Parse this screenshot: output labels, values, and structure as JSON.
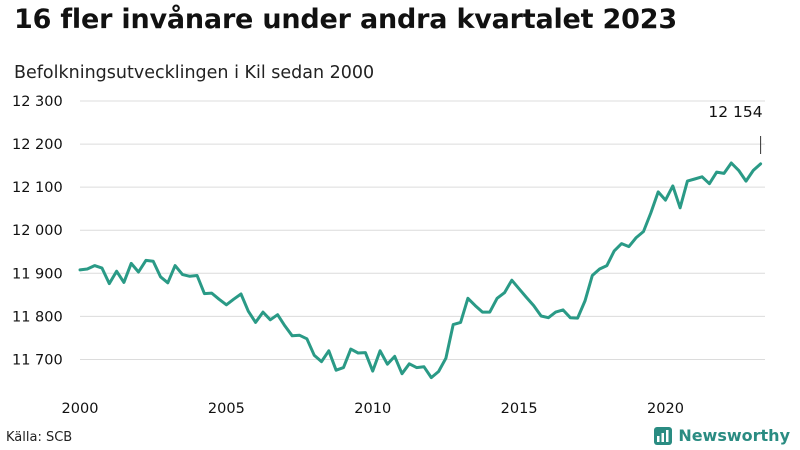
{
  "title": "16 fler invånare under andra kvartalet 2023",
  "subtitle": "Befolkningsutvecklingen i Kil sedan 2000",
  "source": "Källa: SCB",
  "brand": {
    "name": "Newsworthy",
    "icon": "newsworthy-logo-icon",
    "color": "#2a8c82"
  },
  "chart_data": {
    "type": "line",
    "title": "16 fler invånare under andra kvartalet 2023",
    "subtitle": "Befolkningsutvecklingen i Kil sedan 2000",
    "xlabel": "",
    "ylabel": "",
    "xlim": [
      2000,
      2023.4
    ],
    "ylim": [
      11650,
      12300
    ],
    "x_ticks": [
      2000,
      2005,
      2010,
      2015,
      2020
    ],
    "y_ticks": [
      11700,
      11800,
      11900,
      12000,
      12100,
      12200,
      12300
    ],
    "y_tick_labels": [
      "11 700",
      "11 800",
      "11 900",
      "12 000",
      "12 100",
      "12 200",
      "12 300"
    ],
    "grid": "horizontal",
    "line_color": "#2a9a86",
    "series": [
      {
        "x": [
          2000.0,
          2000.25,
          2000.5,
          2000.75,
          2001.0,
          2001.25,
          2001.5,
          2001.75,
          2002.0,
          2002.25,
          2002.5,
          2002.75,
          2003.0,
          2003.25,
          2003.5,
          2003.75,
          2004.0,
          2004.25,
          2004.5,
          2004.75,
          2005.0,
          2005.25,
          2005.5,
          2005.75,
          2006.0,
          2006.25,
          2006.5,
          2006.75,
          2007.0,
          2007.25,
          2007.5,
          2007.75,
          2008.0,
          2008.25,
          2008.5,
          2008.75,
          2009.0,
          2009.25,
          2009.5,
          2009.75,
          2010.0,
          2010.25,
          2010.5,
          2010.75,
          2011.0,
          2011.25,
          2011.5,
          2011.75,
          2012.0,
          2012.25,
          2012.5,
          2012.75,
          2013.0,
          2013.25,
          2013.5,
          2013.75,
          2014.0,
          2014.25,
          2014.5,
          2014.75,
          2015.0,
          2015.25,
          2015.5,
          2015.75,
          2016.0,
          2016.25,
          2016.5,
          2016.75,
          2017.0,
          2017.25,
          2017.5,
          2017.75,
          2018.0,
          2018.25,
          2018.5,
          2018.75,
          2019.0,
          2019.25,
          2019.5,
          2019.75,
          2020.0,
          2020.25,
          2020.5,
          2020.75,
          2021.0,
          2021.25,
          2021.5,
          2021.75,
          2022.0,
          2022.25,
          2022.5,
          2022.75,
          2023.0,
          2023.25
        ],
        "values": [
          11908,
          11910,
          11918,
          11912,
          11876,
          11905,
          11879,
          11923,
          11903,
          11930,
          11928,
          11892,
          11878,
          11918,
          11897,
          11893,
          11895,
          11853,
          11854,
          11840,
          11827,
          11840,
          11852,
          11812,
          11786,
          11810,
          11792,
          11804,
          11778,
          11755,
          11756,
          11748,
          11710,
          11695,
          11720,
          11675,
          11681,
          11724,
          11715,
          11716,
          11673,
          11720,
          11689,
          11707,
          11667,
          11690,
          11681,
          11683,
          11658,
          11672,
          11703,
          11781,
          11786,
          11842,
          11825,
          11810,
          11810,
          11842,
          11855,
          11884,
          11864,
          11844,
          11825,
          11801,
          11797,
          11810,
          11815,
          11797,
          11796,
          11836,
          11895,
          11910,
          11918,
          11952,
          11969,
          11962,
          11983,
          11997,
          12040,
          12089,
          12070,
          12103,
          12052,
          12114,
          12119,
          12124,
          12108,
          12135,
          12132,
          12156,
          12139,
          12114,
          12139,
          12154
        ]
      }
    ],
    "annotation": {
      "label": "12 154",
      "x": 2023.25,
      "y": 12154
    }
  }
}
